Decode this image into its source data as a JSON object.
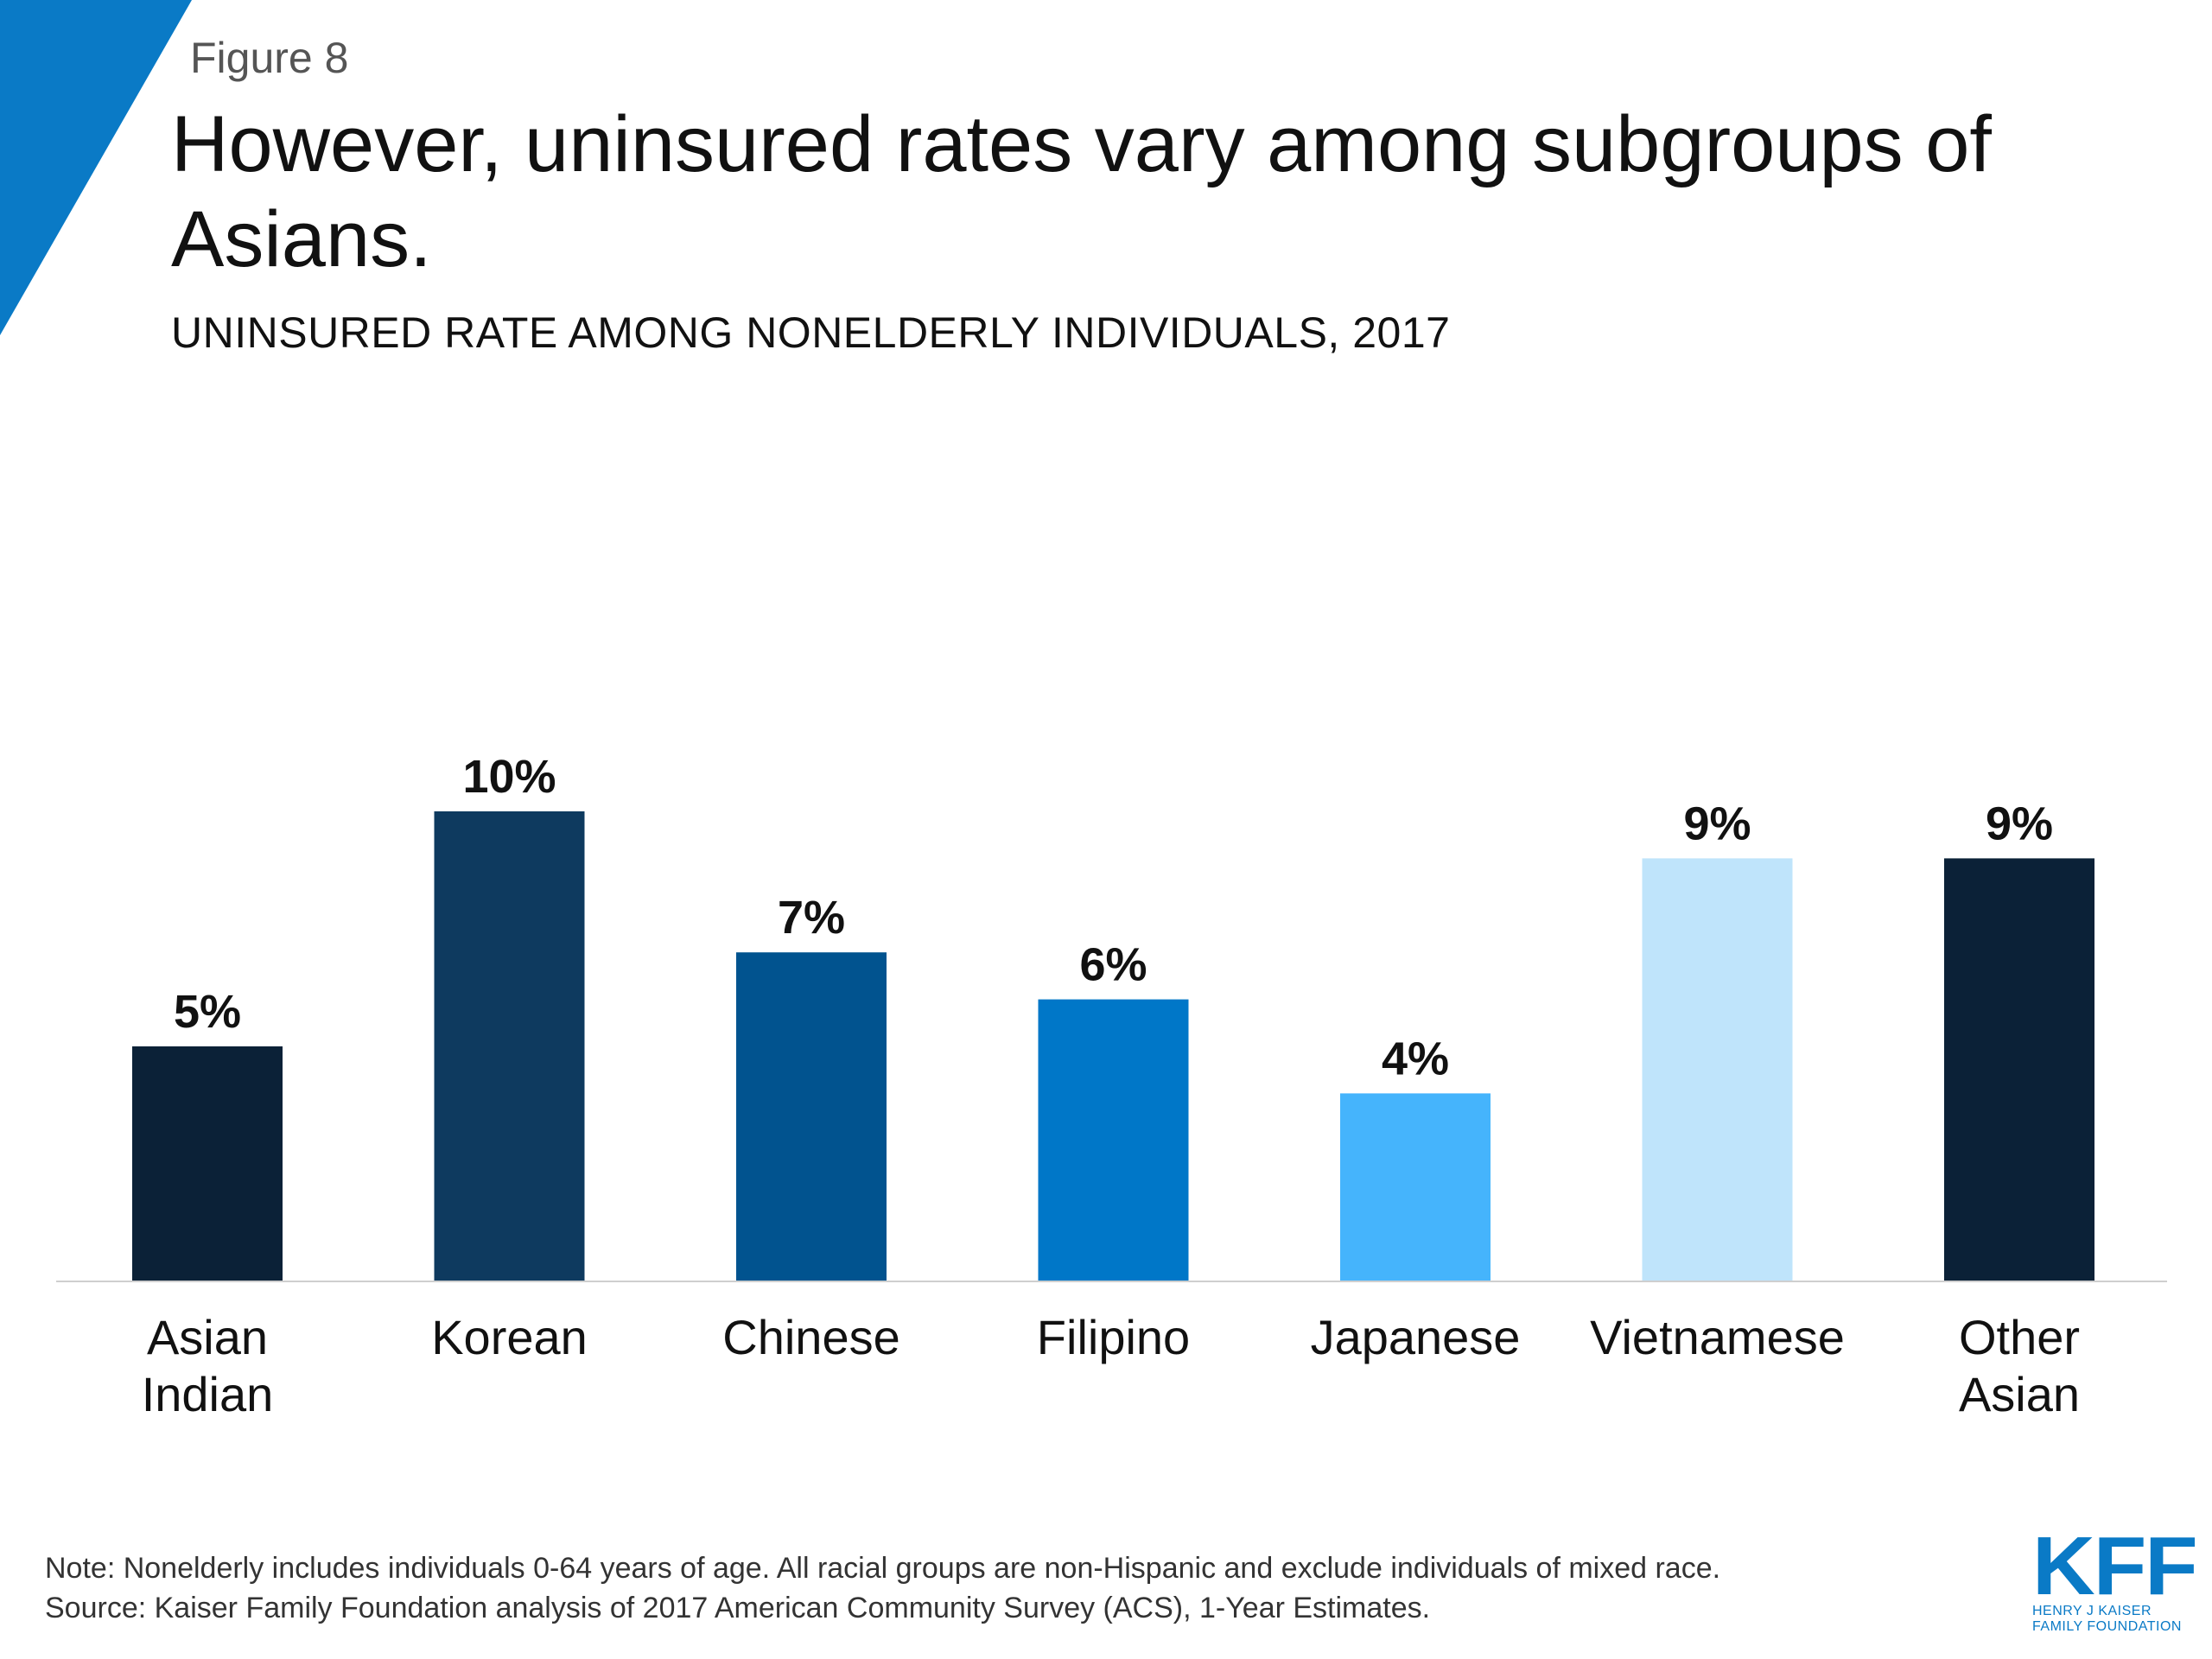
{
  "figure_label": "Figure 8",
  "title": "However, uninsured rates vary among subgroups of Asians.",
  "subtitle": "UNINSURED RATE AMONG NONELDERLY INDIVIDUALS, 2017",
  "note": "Note: Nonelderly includes individuals 0-64 years of age. All racial groups are non-Hispanic and exclude individuals of mixed race.",
  "source": "Source: Kaiser Family Foundation analysis of 2017 American Community Survey (ACS), 1-Year Estimates.",
  "logo": {
    "mark": "KFF",
    "line1": "HENRY J KAISER",
    "line2": "FAMILY FOUNDATION"
  },
  "colors": {
    "accent_triangle": "#0a7ac6"
  },
  "chart_data": {
    "type": "bar",
    "title": "UNINSURED RATE AMONG NONELDERLY INDIVIDUALS, 2017",
    "categories": [
      "Asian Indian",
      "Korean",
      "Chinese",
      "Filipino",
      "Japanese",
      "Vietnamese",
      "Other Asian"
    ],
    "category_lines": [
      [
        "Asian",
        "Indian"
      ],
      [
        "Korean"
      ],
      [
        "Chinese"
      ],
      [
        "Filipino"
      ],
      [
        "Japanese"
      ],
      [
        "Vietnamese"
      ],
      [
        "Other",
        "Asian"
      ]
    ],
    "values": [
      5,
      10,
      7,
      6,
      4,
      9,
      9
    ],
    "value_labels": [
      "5%",
      "10%",
      "7%",
      "6%",
      "4%",
      "9%",
      "9%"
    ],
    "colors": [
      "#0b2137",
      "#0e3a5f",
      "#01538f",
      "#0077c8",
      "#45b4fc",
      "#bfe4fb",
      "#0b2137"
    ],
    "unit": "%",
    "ylim": [
      0,
      10
    ],
    "grid": false,
    "legend": "none"
  }
}
